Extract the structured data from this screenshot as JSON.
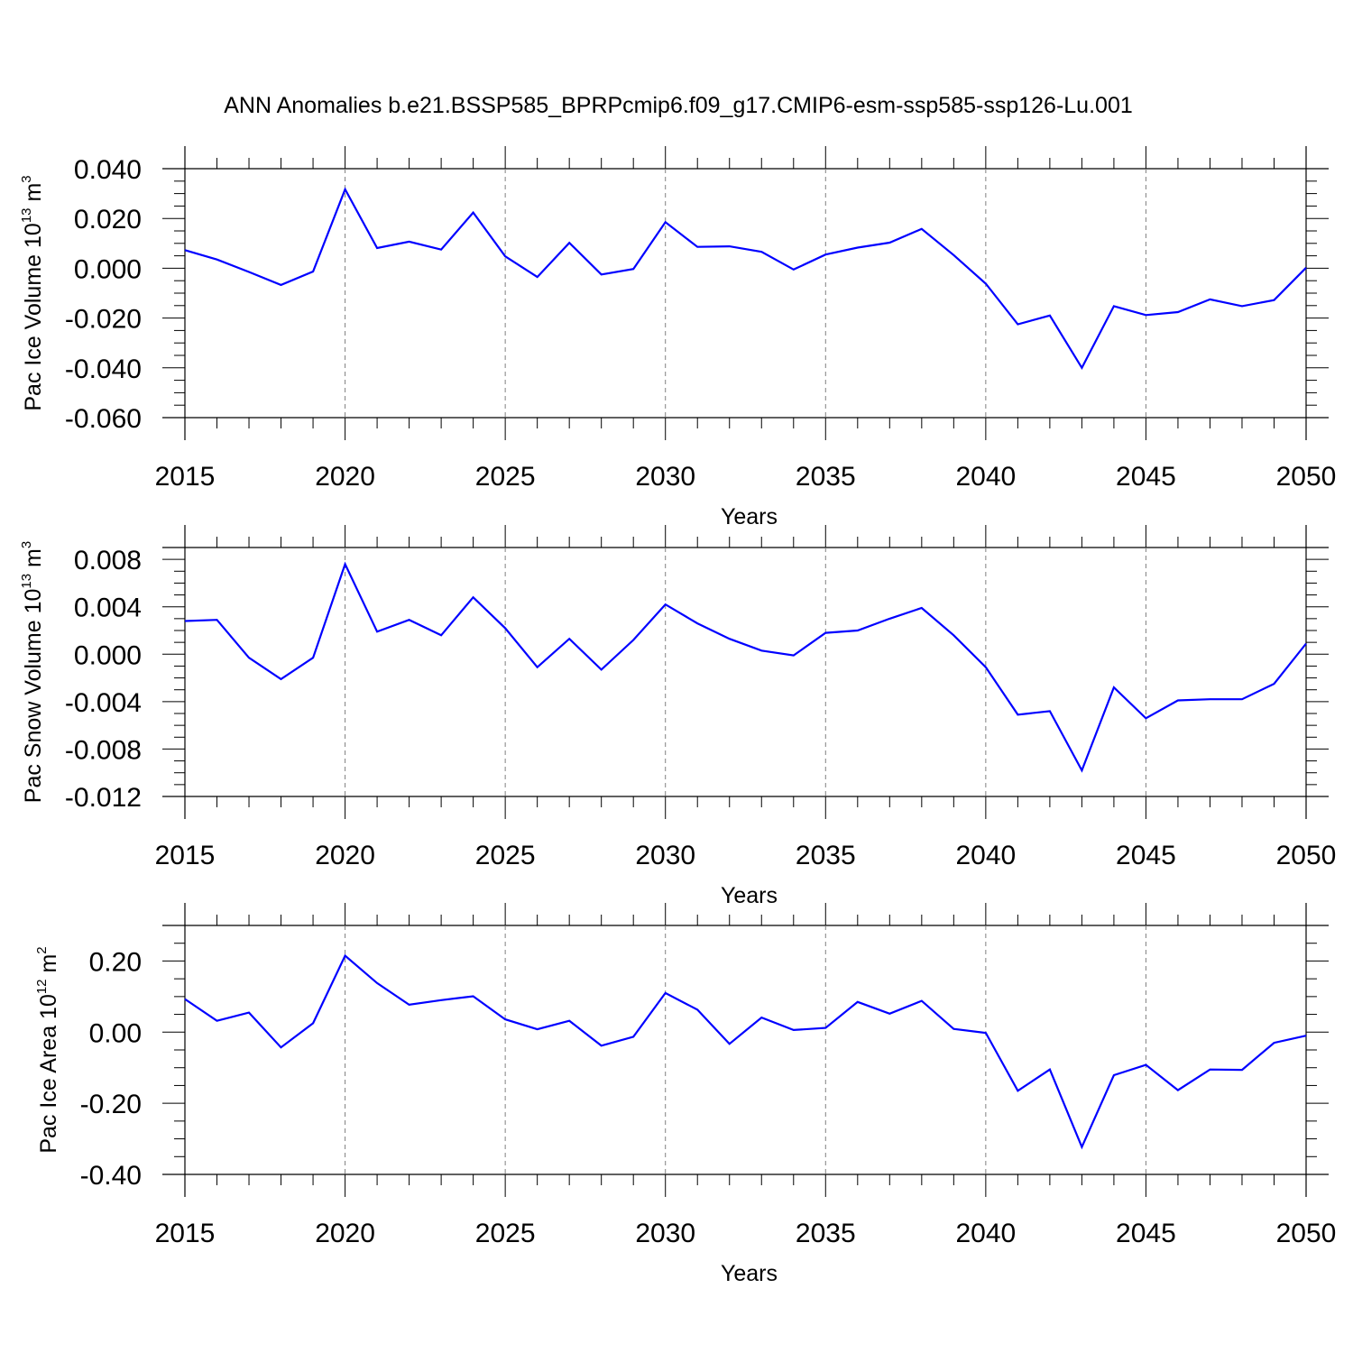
{
  "title": "ANN Anomalies b.e21.BSSP585_BPRPcmip6.f09_g17.CMIP6-esm-ssp585-ssp126-Lu.001",
  "colors": {
    "line": "#0000ff",
    "axis": "#000000",
    "grid": "#808080"
  },
  "chart_data": [
    {
      "type": "line",
      "ylabel": {
        "prefix": "Pac Ice Volume 10",
        "exp": "13",
        "unit": " m",
        "unit_exp": "3"
      },
      "xlabel": "Years",
      "xlim": [
        2015,
        2050
      ],
      "ylim": [
        -0.06,
        0.04
      ],
      "xticks": [
        {
          "v": 2015,
          "label": "2015"
        },
        {
          "v": 2020,
          "label": "2020"
        },
        {
          "v": 2025,
          "label": "2025"
        },
        {
          "v": 2030,
          "label": "2030"
        },
        {
          "v": 2035,
          "label": "2035"
        },
        {
          "v": 2040,
          "label": "2040"
        },
        {
          "v": 2045,
          "label": "2045"
        },
        {
          "v": 2050,
          "label": "2050"
        }
      ],
      "yticks": [
        {
          "v": 0.04,
          "label": "0.040"
        },
        {
          "v": 0.02,
          "label": "0.020"
        },
        {
          "v": 0.0,
          "label": "0.000"
        },
        {
          "v": -0.02,
          "label": "-0.020"
        },
        {
          "v": -0.04,
          "label": "-0.040"
        },
        {
          "v": -0.06,
          "label": "-0.060"
        }
      ],
      "y_minor_step": 0.005,
      "gridlines_x": [
        2020,
        2025,
        2030,
        2035,
        2040,
        2045
      ],
      "x": [
        2015,
        2016,
        2017,
        2018,
        2019,
        2020,
        2021,
        2022,
        2023,
        2024,
        2025,
        2026,
        2027,
        2028,
        2029,
        2030,
        2031,
        2032,
        2033,
        2034,
        2035,
        2036,
        2037,
        2038,
        2039,
        2040,
        2041,
        2042,
        2043,
        2044,
        2045,
        2046,
        2047,
        2048,
        2049,
        2050
      ],
      "values": [
        0.0073,
        0.0035,
        -0.0015,
        -0.0067,
        -0.0013,
        0.0317,
        0.0081,
        0.0107,
        0.0075,
        0.0224,
        0.0048,
        -0.0035,
        0.0102,
        -0.0025,
        -0.0003,
        0.0185,
        0.0086,
        0.0088,
        0.0066,
        -0.0005,
        0.0055,
        0.0083,
        0.0103,
        0.0158,
        0.0053,
        -0.0062,
        -0.0225,
        -0.019,
        -0.04,
        -0.0152,
        -0.0188,
        -0.0176,
        -0.0125,
        -0.0152,
        -0.0128,
        0.0002
      ]
    },
    {
      "type": "line",
      "ylabel": {
        "prefix": "Pac Snow Volume 10",
        "exp": "13",
        "unit": " m",
        "unit_exp": "3"
      },
      "xlabel": "Years",
      "xlim": [
        2015,
        2050
      ],
      "ylim": [
        -0.012,
        0.009
      ],
      "xticks": [
        {
          "v": 2015,
          "label": "2015"
        },
        {
          "v": 2020,
          "label": "2020"
        },
        {
          "v": 2025,
          "label": "2025"
        },
        {
          "v": 2030,
          "label": "2030"
        },
        {
          "v": 2035,
          "label": "2035"
        },
        {
          "v": 2040,
          "label": "2040"
        },
        {
          "v": 2045,
          "label": "2045"
        },
        {
          "v": 2050,
          "label": "2050"
        }
      ],
      "yticks": [
        {
          "v": 0.008,
          "label": "0.008"
        },
        {
          "v": 0.004,
          "label": "0.004"
        },
        {
          "v": 0.0,
          "label": "0.000"
        },
        {
          "v": -0.004,
          "label": "-0.004"
        },
        {
          "v": -0.008,
          "label": "-0.008"
        },
        {
          "v": -0.012,
          "label": "-0.012"
        }
      ],
      "y_minor_step": 0.001,
      "gridlines_x": [
        2020,
        2025,
        2030,
        2035,
        2040,
        2045
      ],
      "x": [
        2015,
        2016,
        2017,
        2018,
        2019,
        2020,
        2021,
        2022,
        2023,
        2024,
        2025,
        2026,
        2027,
        2028,
        2029,
        2030,
        2031,
        2032,
        2033,
        2034,
        2035,
        2036,
        2037,
        2038,
        2039,
        2040,
        2041,
        2042,
        2043,
        2044,
        2045,
        2046,
        2047,
        2048,
        2049,
        2050
      ],
      "values": [
        0.0028,
        0.0029,
        -0.0003,
        -0.0021,
        -0.0003,
        0.0076,
        0.0019,
        0.0029,
        0.0016,
        0.0048,
        0.0022,
        -0.0011,
        0.0013,
        -0.0013,
        0.0012,
        0.0042,
        0.0026,
        0.0013,
        0.0003,
        -0.0001,
        0.0018,
        0.002,
        0.003,
        0.0039,
        0.0016,
        -0.0011,
        -0.0051,
        -0.0048,
        -0.0098,
        -0.0028,
        -0.0054,
        -0.0039,
        -0.0038,
        -0.0038,
        -0.0025,
        0.0009
      ]
    },
    {
      "type": "line",
      "ylabel": {
        "prefix": "Pac Ice Area 10",
        "exp": "12",
        "unit": " m",
        "unit_exp": "2"
      },
      "xlabel": "Years",
      "xlim": [
        2015,
        2050
      ],
      "ylim": [
        -0.4,
        0.3
      ],
      "xticks": [
        {
          "v": 2015,
          "label": "2015"
        },
        {
          "v": 2020,
          "label": "2020"
        },
        {
          "v": 2025,
          "label": "2025"
        },
        {
          "v": 2030,
          "label": "2030"
        },
        {
          "v": 2035,
          "label": "2035"
        },
        {
          "v": 2040,
          "label": "2040"
        },
        {
          "v": 2045,
          "label": "2045"
        },
        {
          "v": 2050,
          "label": "2050"
        }
      ],
      "yticks": [
        {
          "v": 0.2,
          "label": "0.20"
        },
        {
          "v": 0.0,
          "label": "0.00"
        },
        {
          "v": -0.2,
          "label": "-0.20"
        },
        {
          "v": -0.4,
          "label": "-0.40"
        }
      ],
      "y_minor_step": 0.05,
      "gridlines_x": [
        2020,
        2025,
        2030,
        2035,
        2040,
        2045
      ],
      "x": [
        2015,
        2016,
        2017,
        2018,
        2019,
        2020,
        2021,
        2022,
        2023,
        2024,
        2025,
        2026,
        2027,
        2028,
        2029,
        2030,
        2031,
        2032,
        2033,
        2034,
        2035,
        2036,
        2037,
        2038,
        2039,
        2040,
        2041,
        2042,
        2043,
        2044,
        2045,
        2046,
        2047,
        2048,
        2049,
        2050
      ],
      "values": [
        0.093,
        0.032,
        0.055,
        -0.043,
        0.025,
        0.215,
        0.138,
        0.077,
        0.09,
        0.101,
        0.036,
        0.008,
        0.032,
        -0.038,
        -0.013,
        0.11,
        0.063,
        -0.033,
        0.041,
        0.006,
        0.012,
        0.085,
        0.052,
        0.088,
        0.009,
        -0.002,
        -0.165,
        -0.105,
        -0.323,
        -0.121,
        -0.092,
        -0.163,
        -0.105,
        -0.106,
        -0.03,
        -0.01
      ]
    }
  ]
}
